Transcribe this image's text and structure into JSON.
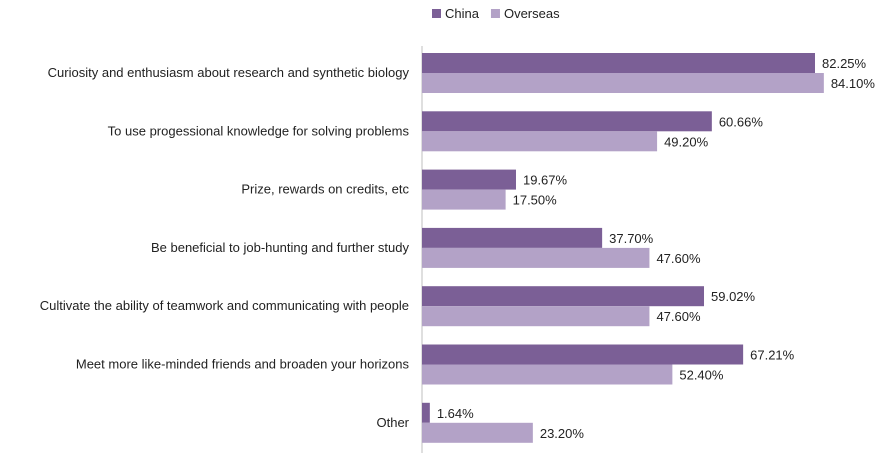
{
  "chart_data": {
    "type": "bar",
    "orientation": "horizontal",
    "categories": [
      "Curiosity and enthusiasm about research and synthetic biology",
      "To use progessional knowledge for solving problems",
      "Prize, rewards on credits, etc",
      "Be beneficial to job-hunting and further study",
      "Cultivate the ability of teamwork and communicating with people",
      "Meet more like-minded friends and broaden your horizons",
      "Other"
    ],
    "series": [
      {
        "name": "China",
        "color": "#7b5f96",
        "values": [
          82.25,
          60.66,
          19.67,
          37.7,
          59.02,
          67.21,
          1.64
        ],
        "labels": [
          "82.25%",
          "60.66%",
          "19.67%",
          "37.70%",
          "59.02%",
          "67.21%",
          "1.64%"
        ]
      },
      {
        "name": "Overseas",
        "color": "#b3a2c7",
        "values": [
          84.1,
          49.2,
          17.5,
          47.6,
          47.6,
          52.4,
          23.2
        ],
        "labels": [
          "84.10%",
          "49.20%",
          "17.50%",
          "47.60%",
          "47.60%",
          "52.40%",
          "23.20%"
        ]
      }
    ],
    "value_unit": "%",
    "xlim": [
      0,
      90
    ],
    "grid": false,
    "legend_position": "top"
  }
}
